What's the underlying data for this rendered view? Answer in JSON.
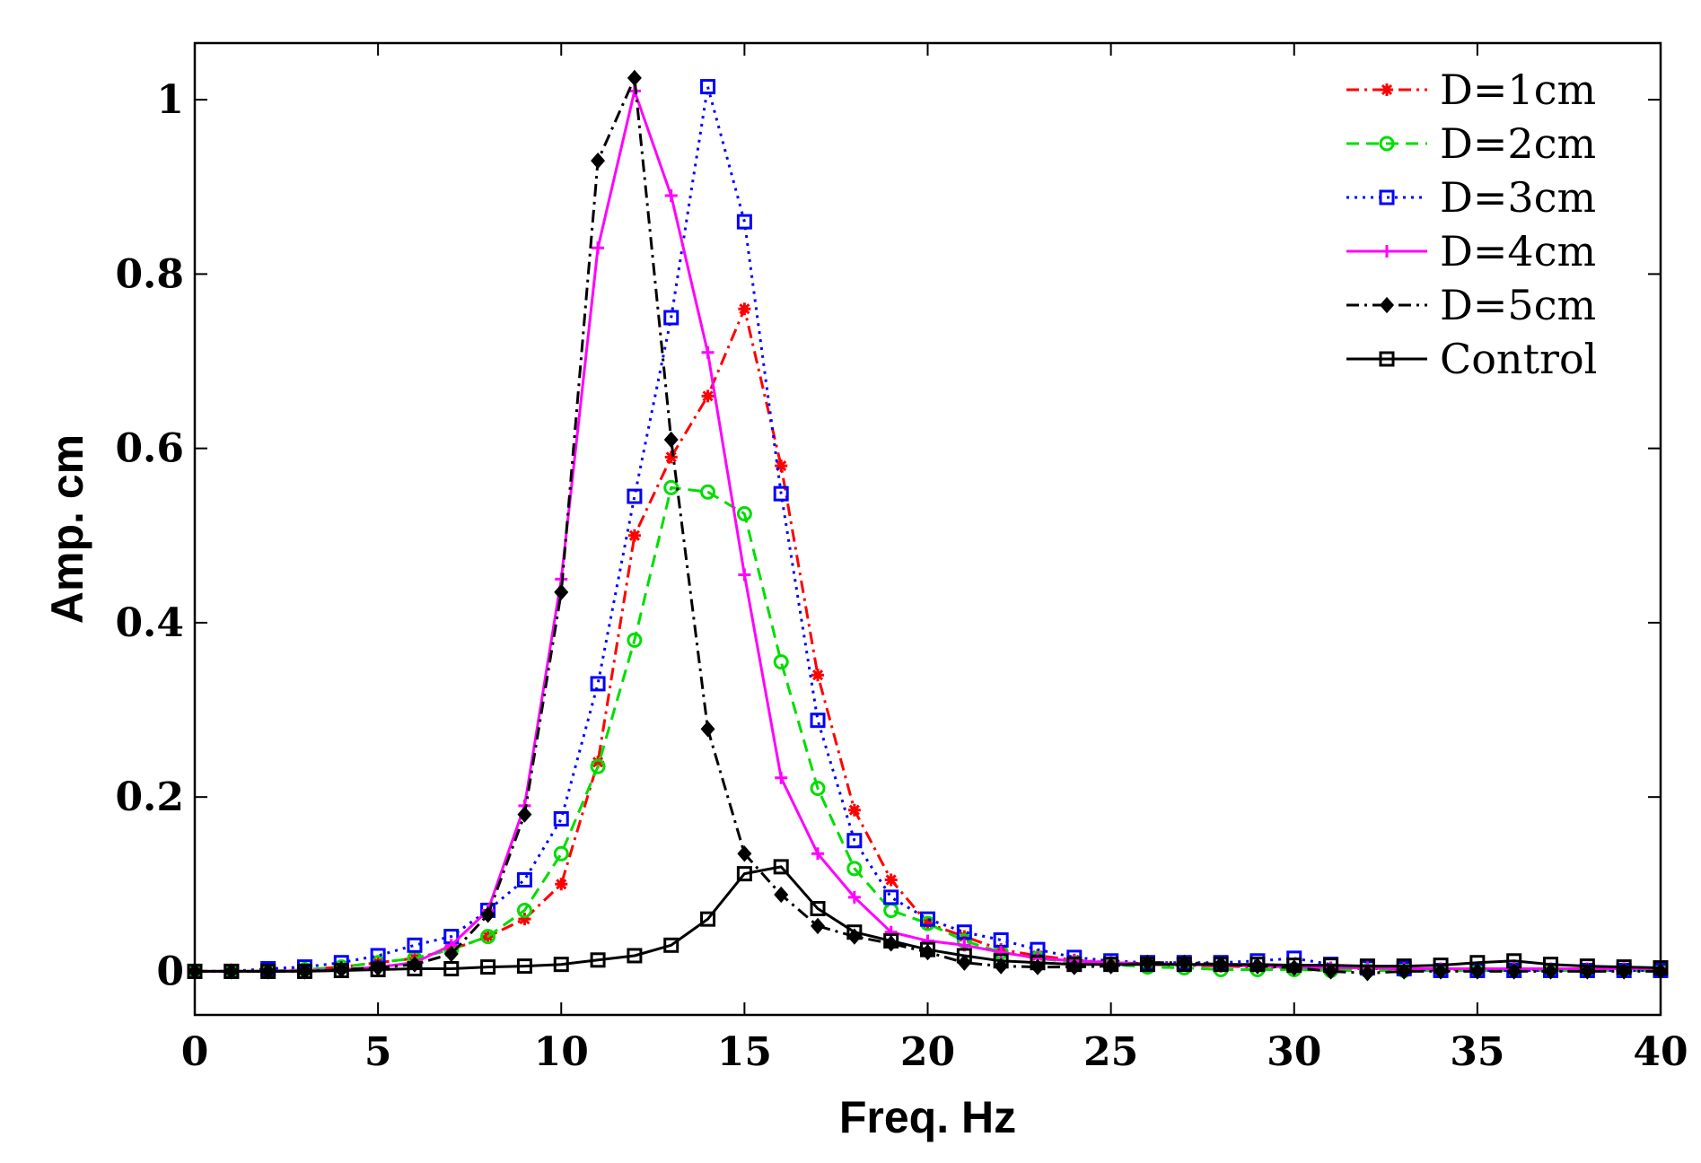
{
  "chart_data": {
    "type": "line",
    "title": "",
    "xlabel": "Freq. Hz",
    "ylabel": "Amp. cm",
    "xlim": [
      0,
      40
    ],
    "ylim": [
      -0.05,
      1.065
    ],
    "xticks": [
      0,
      5,
      10,
      15,
      20,
      25,
      30,
      35,
      40
    ],
    "xtick_labels": [
      "0",
      "5",
      "10",
      "15",
      "20",
      "25",
      "30",
      "35",
      "40"
    ],
    "yticks": [
      0,
      0.2,
      0.4,
      0.6,
      0.8,
      1
    ],
    "ytick_labels": [
      "0",
      "0.2",
      "0.4",
      "0.6",
      "0.8",
      "1"
    ],
    "grid": false,
    "legend_position": "top-right",
    "x": [
      0,
      1,
      2,
      3,
      4,
      5,
      6,
      7,
      8,
      9,
      10,
      11,
      12,
      13,
      14,
      15,
      16,
      17,
      18,
      19,
      20,
      21,
      22,
      23,
      24,
      25,
      26,
      27,
      28,
      29,
      30,
      31,
      32,
      33,
      34,
      35,
      36,
      37,
      38,
      39,
      40
    ],
    "series": [
      {
        "name": "D=1cm",
        "color": "#ff0000",
        "dash": "dashdot",
        "marker": "star",
        "values": [
          0,
          0,
          0,
          0.002,
          0.005,
          0.01,
          0.015,
          0.025,
          0.04,
          0.06,
          0.1,
          0.24,
          0.5,
          0.59,
          0.66,
          0.76,
          0.58,
          0.34,
          0.185,
          0.105,
          0.055,
          0.04,
          0.025,
          0.018,
          0.013,
          0.01,
          0.008,
          0.007,
          0.006,
          0.005,
          0.004,
          0.003,
          0.003,
          0.003,
          0.002,
          0.002,
          0.002,
          0.002,
          0.002,
          0.002,
          0.002
        ]
      },
      {
        "name": "D=2cm",
        "color": "#00dd00",
        "dash": "dashed",
        "marker": "circle",
        "values": [
          0,
          0,
          0,
          0.002,
          0.005,
          0.01,
          0.015,
          0.025,
          0.04,
          0.07,
          0.135,
          0.235,
          0.38,
          0.555,
          0.55,
          0.525,
          0.355,
          0.21,
          0.118,
          0.07,
          0.055,
          0.035,
          0.022,
          0.015,
          0.01,
          0.008,
          0.005,
          0.004,
          0.002,
          0.002,
          0.002,
          0.001,
          0.001,
          0.001,
          0.001,
          0.001,
          0.001,
          0.001,
          0.001,
          0.001,
          0.001
        ]
      },
      {
        "name": "D=3cm",
        "color": "#0000ff",
        "dash": "dotted",
        "marker": "square",
        "values": [
          0,
          0,
          0.003,
          0.005,
          0.01,
          0.018,
          0.03,
          0.04,
          0.07,
          0.105,
          0.175,
          0.33,
          0.545,
          0.75,
          1.015,
          0.86,
          0.548,
          0.288,
          0.15,
          0.085,
          0.06,
          0.045,
          0.036,
          0.025,
          0.016,
          0.012,
          0.01,
          0.01,
          0.01,
          0.012,
          0.015,
          0.008,
          0.004,
          0.003,
          0.001,
          0.001,
          0.001,
          0.001,
          0.001,
          0.001,
          0.001
        ]
      },
      {
        "name": "D=4cm",
        "color": "#ff00ff",
        "dash": "solid",
        "marker": "plus",
        "values": [
          0,
          0,
          0,
          0.001,
          0.002,
          0.005,
          0.01,
          0.03,
          0.07,
          0.19,
          0.45,
          0.83,
          1.01,
          0.89,
          0.71,
          0.455,
          0.222,
          0.135,
          0.085,
          0.045,
          0.035,
          0.03,
          0.022,
          0.015,
          0.012,
          0.01,
          0.009,
          0.008,
          0.007,
          0.006,
          0.005,
          0.004,
          0.004,
          0.003,
          0.003,
          0.003,
          0.003,
          0.003,
          0.003,
          0.003,
          0.003
        ]
      },
      {
        "name": "D=5cm",
        "color": "#000000",
        "dash": "dashdot",
        "marker": "diamond",
        "values": [
          0,
          0,
          0,
          0,
          0.002,
          0.004,
          0.008,
          0.02,
          0.065,
          0.18,
          0.435,
          0.93,
          1.025,
          0.61,
          0.278,
          0.135,
          0.088,
          0.052,
          0.04,
          0.032,
          0.022,
          0.01,
          0.006,
          0.005,
          0.005,
          0.006,
          0.01,
          0.01,
          0.008,
          0.006,
          0.004,
          0,
          -0.002,
          0,
          0,
          0,
          0,
          0,
          0,
          0,
          0
        ]
      },
      {
        "name": "Control",
        "color": "#000000",
        "dash": "solid",
        "marker": "square",
        "values": [
          0,
          0,
          0,
          0,
          0.001,
          0.002,
          0.003,
          0.003,
          0.005,
          0.006,
          0.008,
          0.013,
          0.018,
          0.03,
          0.06,
          0.112,
          0.12,
          0.072,
          0.045,
          0.035,
          0.025,
          0.018,
          0.012,
          0.01,
          0.008,
          0.008,
          0.008,
          0.008,
          0.008,
          0.008,
          0.007,
          0.007,
          0.006,
          0.006,
          0.007,
          0.01,
          0.012,
          0.008,
          0.006,
          0.005,
          0.004
        ]
      }
    ]
  }
}
